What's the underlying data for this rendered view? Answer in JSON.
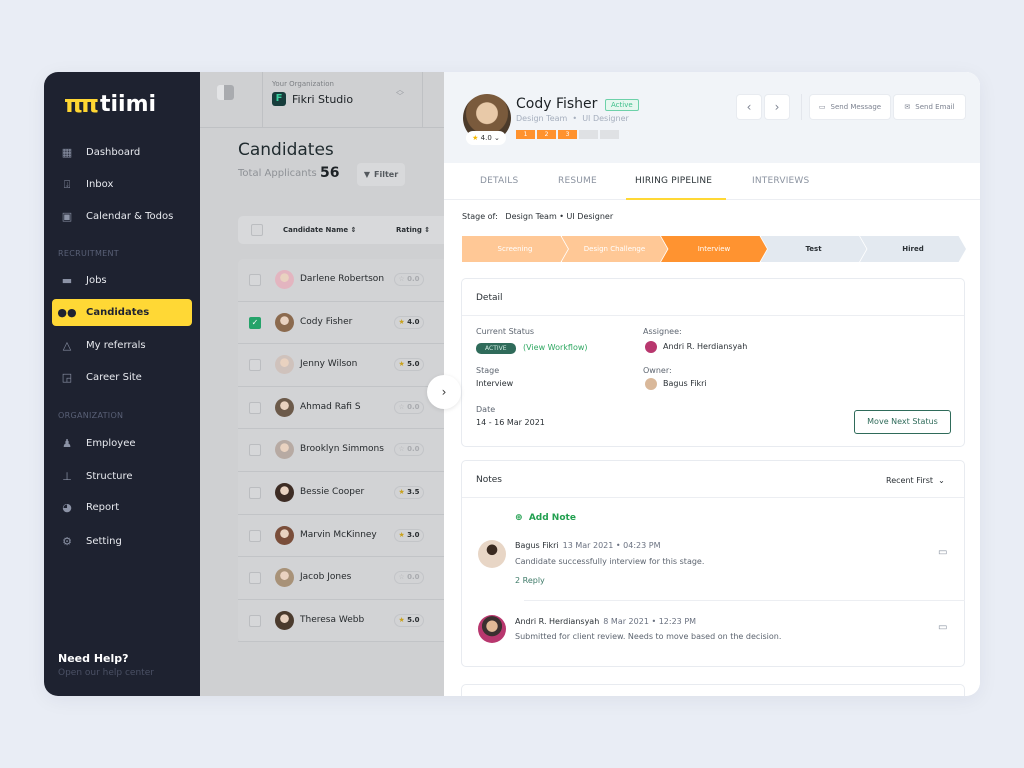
{
  "brand": {
    "name": "tiimi",
    "accent": "#ffd835"
  },
  "sidebar": {
    "items": [
      {
        "label": "Dashboard",
        "icon": "dashboard-icon"
      },
      {
        "label": "Inbox",
        "icon": "inbox-icon"
      },
      {
        "label": "Calendar & Todos",
        "icon": "calendar-icon"
      }
    ],
    "recruitment_label": "RECRUITMENT",
    "recruitment": [
      {
        "label": "Jobs",
        "icon": "briefcase-icon"
      },
      {
        "label": "Candidates",
        "icon": "users-icon",
        "active": true
      },
      {
        "label": "My referrals",
        "icon": "triangle-icon"
      },
      {
        "label": "Career Site",
        "icon": "site-icon"
      }
    ],
    "organization_label": "ORGANIZATION",
    "organization": [
      {
        "label": "Employee",
        "icon": "person-icon"
      },
      {
        "label": "Structure",
        "icon": "hierarchy-icon"
      },
      {
        "label": "Report",
        "icon": "pie-chart-icon"
      },
      {
        "label": "Setting",
        "icon": "gear-icon"
      }
    ],
    "help_title": "Need Help?",
    "help_sub": "Open our help center"
  },
  "org": {
    "label": "Your Organization",
    "name": "Fikri Studio"
  },
  "candidates": {
    "title": "Candidates",
    "total_label": "Total Applicants",
    "total": "56",
    "filter": "Filter",
    "col_name": "Candidate Name ⇕",
    "col_rating": "Rating ⇕",
    "rows": [
      {
        "name": "Darlene Robertson",
        "rating": "0.0",
        "checked": false
      },
      {
        "name": "Cody Fisher",
        "rating": "4.0",
        "checked": true
      },
      {
        "name": "Jenny Wilson",
        "rating": "5.0",
        "checked": false
      },
      {
        "name": "Ahmad Rafi S",
        "rating": "0.0",
        "checked": false
      },
      {
        "name": "Brooklyn Simmons",
        "rating": "0.0",
        "checked": false
      },
      {
        "name": "Bessie Cooper",
        "rating": "3.5",
        "checked": false
      },
      {
        "name": "Marvin McKinney",
        "rating": "3.0",
        "checked": false
      },
      {
        "name": "Jacob Jones",
        "rating": "0.0",
        "checked": false
      },
      {
        "name": "Theresa Webb",
        "rating": "5.0",
        "checked": false
      }
    ]
  },
  "profile": {
    "name": "Cody Fisher",
    "status": "Active",
    "team": "Design Team",
    "role": "UI Designer",
    "rating": "4.0",
    "steps": [
      "1",
      "2",
      "3",
      "",
      ""
    ],
    "steps_done": 3,
    "send_message": "Send Message",
    "send_email": "Send Email"
  },
  "tabs": [
    "DETAILS",
    "RESUME",
    "HIRING PIPELINE",
    "INTERVIEWS"
  ],
  "active_tab": "HIRING PIPELINE",
  "pipeline": {
    "stage_of_label": "Stage of:",
    "stage_of": "Design Team • UI Designer",
    "stages": [
      "Screening",
      "Design Challenge",
      "Interview",
      "Test",
      "Hired"
    ],
    "current": "Interview"
  },
  "detail": {
    "title": "Detail",
    "current_status_label": "Current Status",
    "status": "ACTIVE",
    "view_workflow": "(View Workflow)",
    "assignee_label": "Assignee:",
    "assignee": "Andri R. Herdiansyah",
    "stage_label": "Stage",
    "stage": "Interview",
    "owner_label": "Owner:",
    "owner": "Bagus Fikri",
    "date_label": "Date",
    "date": "14 - 16 Mar 2021",
    "move_next": "Move Next Status"
  },
  "notes": {
    "title": "Notes",
    "sort": "Recent First",
    "add": "Add Note",
    "items": [
      {
        "author": "Bagus Fikri",
        "time": "13 Mar 2021 • 04:23 PM",
        "text": "Candidate successfully interview for this stage.",
        "replies": "2 Reply"
      },
      {
        "author": "Andri R. Herdiansyah",
        "time": "8 Mar 2021 • 12:23 PM",
        "text": "Submitted for client review. Needs to move based on the decision."
      }
    ]
  }
}
